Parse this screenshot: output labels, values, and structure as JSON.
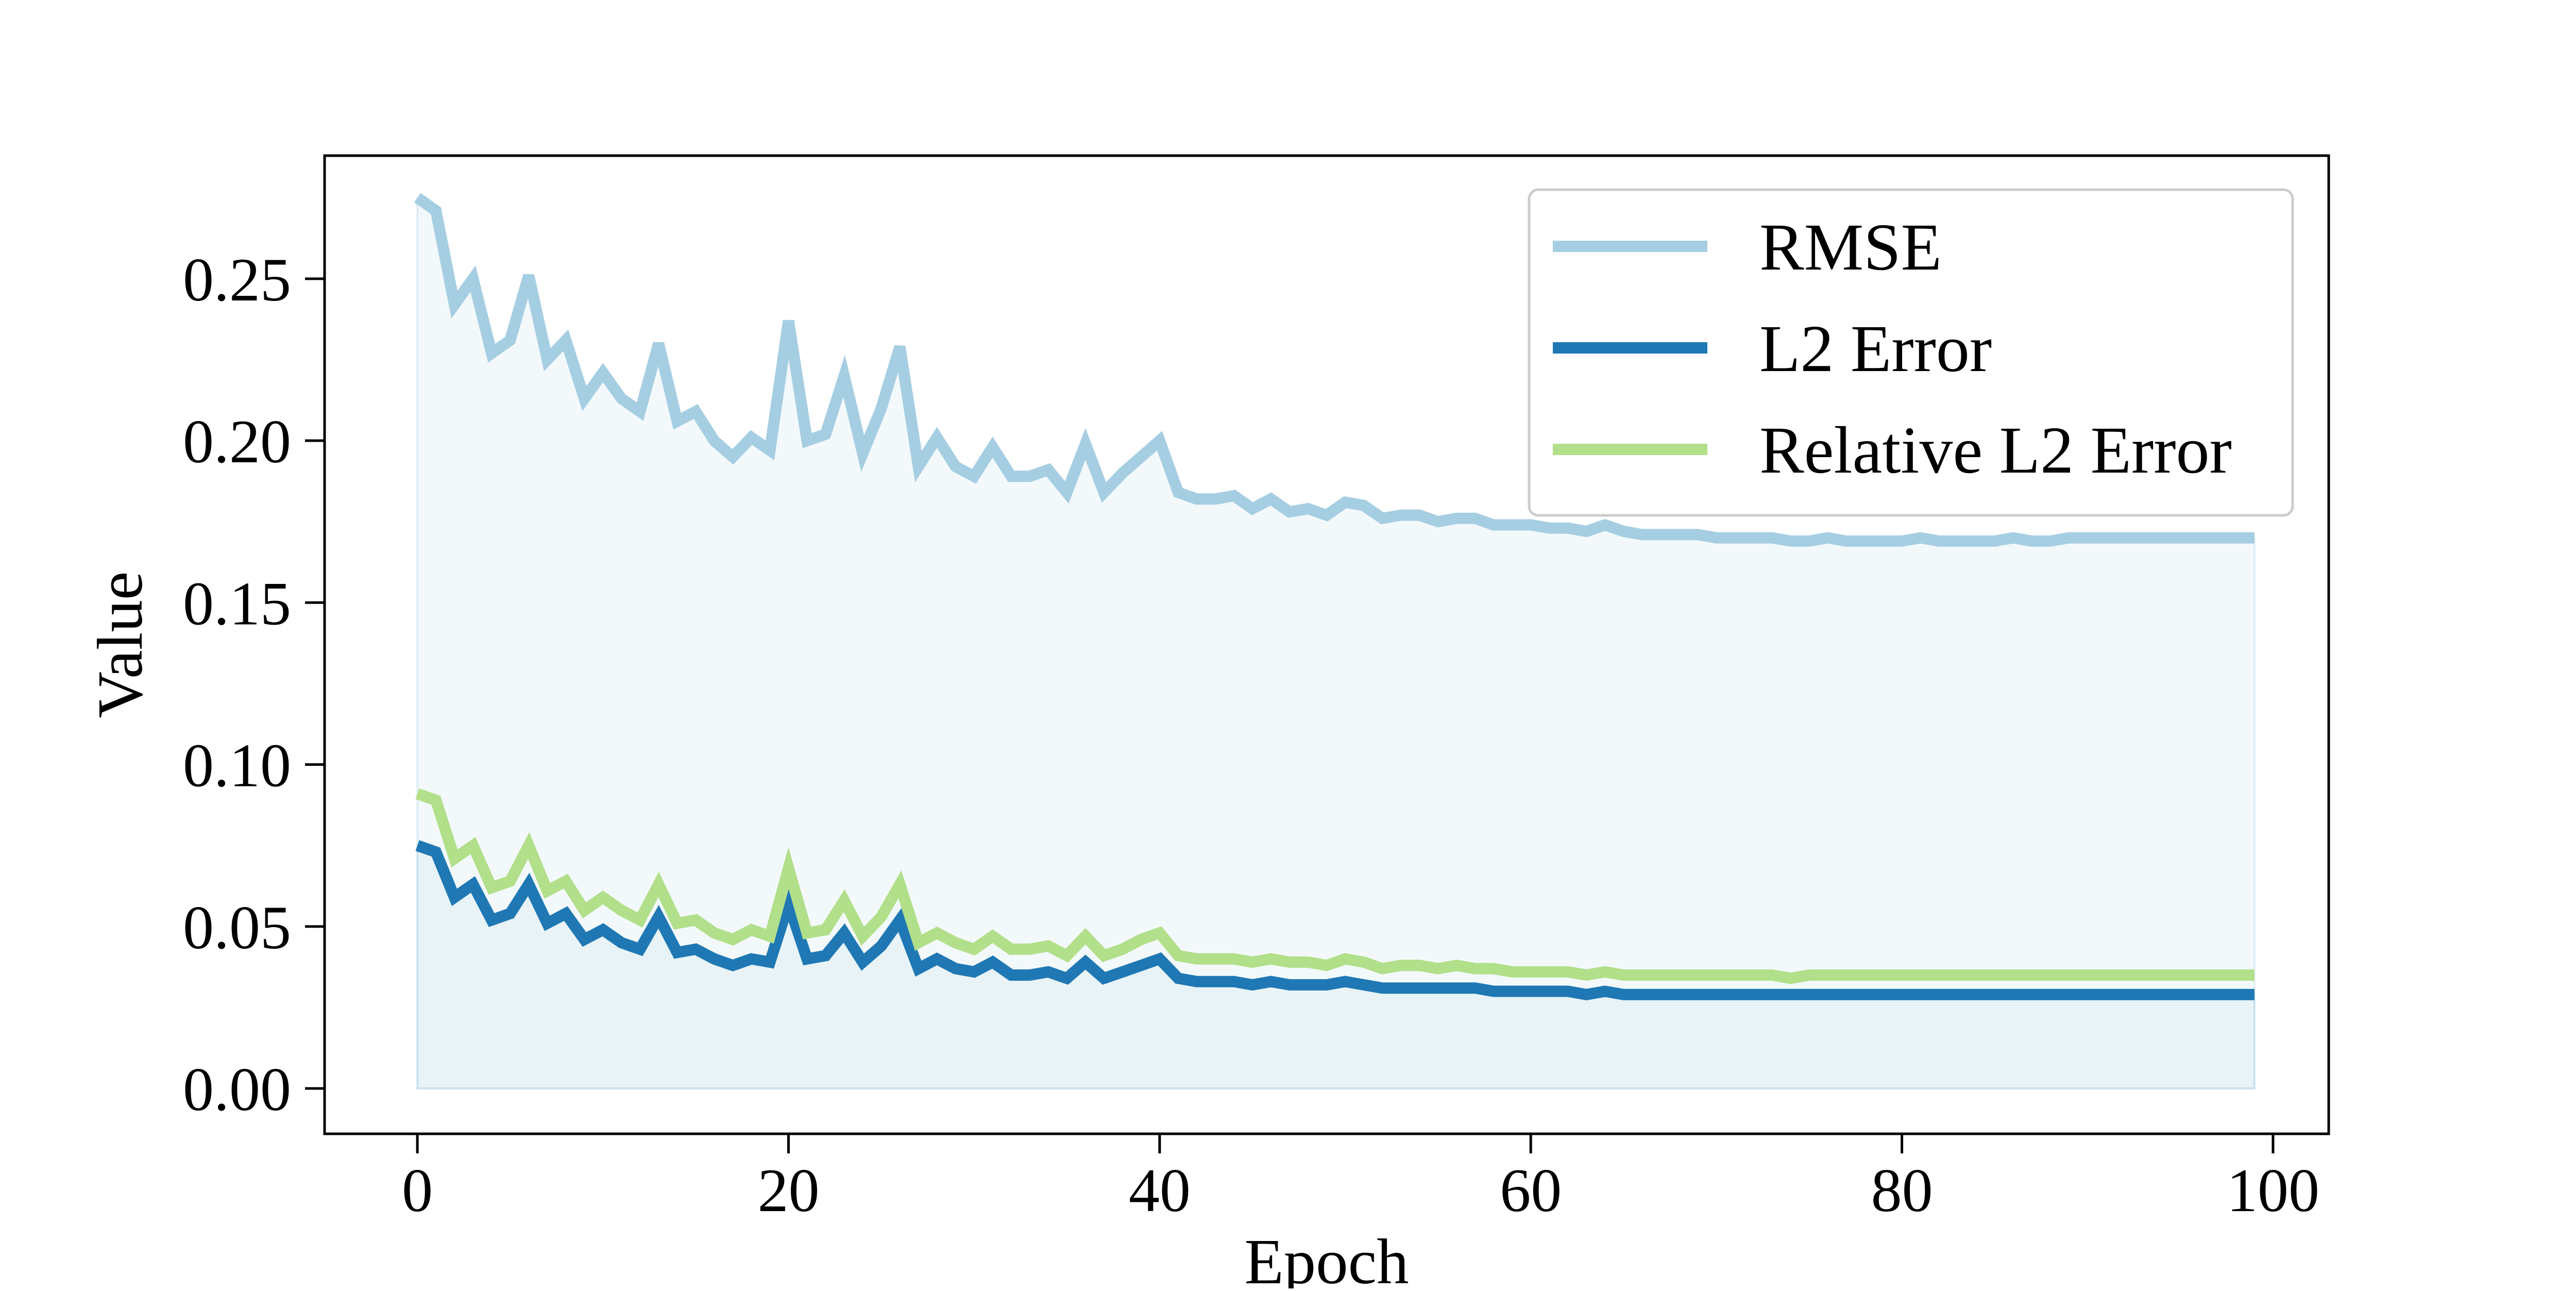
{
  "chart_data": {
    "type": "line",
    "title": "",
    "xlabel": "Epoch",
    "ylabel": "Value",
    "xlim": [
      -5,
      103
    ],
    "ylim": [
      -0.014,
      0.288
    ],
    "xticks": [
      0,
      20,
      40,
      60,
      80,
      100
    ],
    "xtick_labels": [
      "0",
      "20",
      "40",
      "60",
      "80",
      "100"
    ],
    "yticks": [
      0.0,
      0.05,
      0.1,
      0.15,
      0.2,
      0.25
    ],
    "ytick_labels": [
      "0.00",
      "0.05",
      "0.10",
      "0.15",
      "0.20",
      "0.25"
    ],
    "grid": false,
    "legend_position": "top-right",
    "x": [
      0,
      1,
      2,
      3,
      4,
      5,
      6,
      7,
      8,
      9,
      10,
      11,
      12,
      13,
      14,
      15,
      16,
      17,
      18,
      19,
      20,
      21,
      22,
      23,
      24,
      25,
      26,
      27,
      28,
      29,
      30,
      31,
      32,
      33,
      34,
      35,
      36,
      37,
      38,
      39,
      40,
      41,
      42,
      43,
      44,
      45,
      46,
      47,
      48,
      49,
      50,
      51,
      52,
      53,
      54,
      55,
      56,
      57,
      58,
      59,
      60,
      61,
      62,
      63,
      64,
      65,
      66,
      67,
      68,
      69,
      70,
      71,
      72,
      73,
      74,
      75,
      76,
      77,
      78,
      79,
      80,
      81,
      82,
      83,
      84,
      85,
      86,
      87,
      88,
      89,
      90,
      91,
      92,
      93,
      94,
      95,
      96,
      97,
      98,
      99
    ],
    "series": [
      {
        "name": "RMSE",
        "color": "#a6cee3",
        "fill": true,
        "fill_color": "#a6cee3",
        "values": [
          0.275,
          0.271,
          0.242,
          0.25,
          0.227,
          0.231,
          0.251,
          0.225,
          0.231,
          0.213,
          0.221,
          0.213,
          0.209,
          0.23,
          0.206,
          0.209,
          0.2,
          0.195,
          0.201,
          0.197,
          0.237,
          0.2,
          0.202,
          0.22,
          0.196,
          0.21,
          0.229,
          0.192,
          0.201,
          0.192,
          0.189,
          0.198,
          0.189,
          0.189,
          0.191,
          0.184,
          0.199,
          0.184,
          0.19,
          0.195,
          0.2,
          0.184,
          0.182,
          0.182,
          0.183,
          0.179,
          0.182,
          0.178,
          0.179,
          0.177,
          0.181,
          0.18,
          0.176,
          0.177,
          0.177,
          0.175,
          0.176,
          0.176,
          0.174,
          0.174,
          0.174,
          0.173,
          0.173,
          0.172,
          0.174,
          0.172,
          0.171,
          0.171,
          0.171,
          0.171,
          0.17,
          0.17,
          0.17,
          0.17,
          0.169,
          0.169,
          0.17,
          0.169,
          0.169,
          0.169,
          0.169,
          0.17,
          0.169,
          0.169,
          0.169,
          0.169,
          0.17,
          0.169,
          0.169,
          0.17,
          0.17,
          0.17,
          0.17,
          0.17,
          0.17,
          0.17,
          0.17,
          0.17,
          0.17,
          0.17
        ]
      },
      {
        "name": "L2 Error",
        "color": "#1f78b4",
        "fill": true,
        "fill_color": "#a6cee3",
        "values": [
          0.075,
          0.073,
          0.059,
          0.063,
          0.052,
          0.054,
          0.063,
          0.051,
          0.054,
          0.046,
          0.049,
          0.045,
          0.043,
          0.053,
          0.042,
          0.043,
          0.04,
          0.038,
          0.04,
          0.039,
          0.057,
          0.04,
          0.041,
          0.048,
          0.039,
          0.044,
          0.052,
          0.037,
          0.04,
          0.037,
          0.036,
          0.039,
          0.035,
          0.035,
          0.036,
          0.034,
          0.039,
          0.034,
          0.036,
          0.038,
          0.04,
          0.034,
          0.033,
          0.033,
          0.033,
          0.032,
          0.033,
          0.032,
          0.032,
          0.032,
          0.033,
          0.032,
          0.031,
          0.031,
          0.031,
          0.031,
          0.031,
          0.031,
          0.03,
          0.03,
          0.03,
          0.03,
          0.03,
          0.029,
          0.03,
          0.029,
          0.029,
          0.029,
          0.029,
          0.029,
          0.029,
          0.029,
          0.029,
          0.029,
          0.029,
          0.029,
          0.029,
          0.029,
          0.029,
          0.029,
          0.029,
          0.029,
          0.029,
          0.029,
          0.029,
          0.029,
          0.029,
          0.029,
          0.029,
          0.029,
          0.029,
          0.029,
          0.029,
          0.029,
          0.029,
          0.029,
          0.029,
          0.029,
          0.029,
          0.029
        ]
      },
      {
        "name": "Relative L2 Error",
        "color": "#b2df8a",
        "fill": false,
        "values": [
          0.091,
          0.089,
          0.071,
          0.075,
          0.062,
          0.064,
          0.075,
          0.061,
          0.064,
          0.055,
          0.059,
          0.055,
          0.052,
          0.063,
          0.051,
          0.052,
          0.048,
          0.046,
          0.049,
          0.047,
          0.068,
          0.048,
          0.049,
          0.058,
          0.047,
          0.053,
          0.063,
          0.045,
          0.048,
          0.045,
          0.043,
          0.047,
          0.043,
          0.043,
          0.044,
          0.041,
          0.047,
          0.041,
          0.043,
          0.046,
          0.048,
          0.041,
          0.04,
          0.04,
          0.04,
          0.039,
          0.04,
          0.039,
          0.039,
          0.038,
          0.04,
          0.039,
          0.037,
          0.038,
          0.038,
          0.037,
          0.038,
          0.037,
          0.037,
          0.036,
          0.036,
          0.036,
          0.036,
          0.035,
          0.036,
          0.035,
          0.035,
          0.035,
          0.035,
          0.035,
          0.035,
          0.035,
          0.035,
          0.035,
          0.034,
          0.035,
          0.035,
          0.035,
          0.035,
          0.035,
          0.035,
          0.035,
          0.035,
          0.035,
          0.035,
          0.035,
          0.035,
          0.035,
          0.035,
          0.035,
          0.035,
          0.035,
          0.035,
          0.035,
          0.035,
          0.035,
          0.035,
          0.035,
          0.035,
          0.035
        ]
      }
    ]
  }
}
